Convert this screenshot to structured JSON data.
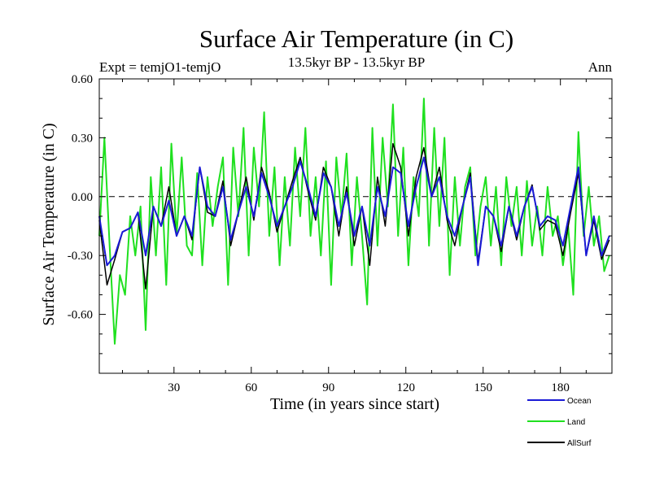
{
  "colors": {
    "ocean": "#1a1ad6",
    "land": "#1fe01f",
    "allsurf": "#000000",
    "zero_line": "#000000",
    "frame": "#000000",
    "background": "#ffffff"
  },
  "chart_data": {
    "type": "line",
    "title": "Surface Air Temperature (in C)",
    "subtitle": "13.5kyr BP - 13.5kyr BP",
    "left_note": "Expt = temjO1-temjO",
    "right_note": "Ann",
    "xlabel": "Time (in years since start)",
    "ylabel": "Surface Air Temperature (in C)",
    "xlim": [
      1,
      200
    ],
    "ylim": [
      -0.9,
      0.6
    ],
    "xticks": [
      30,
      60,
      90,
      120,
      150,
      180
    ],
    "xtick_labels": [
      "30",
      "60",
      "90",
      "120",
      "150",
      "180"
    ],
    "yticks": [
      0.6,
      0.3,
      0.0,
      -0.3,
      -0.6
    ],
    "ytick_labels": [
      "0.60",
      "0.30",
      "0.00",
      "-0.30",
      "-0.60"
    ],
    "reference_line": 0.0,
    "legend_position": "bottom-right",
    "series": [
      {
        "name": "Ocean",
        "color_key": "ocean",
        "x": [
          1,
          4,
          7,
          10,
          13,
          16,
          19,
          22,
          25,
          28,
          31,
          34,
          37,
          40,
          43,
          46,
          49,
          52,
          55,
          58,
          61,
          64,
          67,
          70,
          73,
          76,
          79,
          82,
          85,
          88,
          91,
          94,
          97,
          100,
          103,
          106,
          109,
          112,
          115,
          118,
          121,
          124,
          127,
          130,
          133,
          136,
          139,
          142,
          145,
          148,
          151,
          154,
          157,
          160,
          163,
          166,
          169,
          172,
          175,
          178,
          181,
          184,
          187,
          190,
          193,
          196,
          199
        ],
        "values": [
          -0.1,
          -0.35,
          -0.3,
          -0.18,
          -0.16,
          -0.08,
          -0.3,
          -0.05,
          -0.15,
          -0.02,
          -0.2,
          -0.1,
          -0.2,
          0.15,
          -0.05,
          -0.1,
          0.05,
          -0.22,
          -0.08,
          0.05,
          -0.1,
          0.12,
          0.0,
          -0.15,
          -0.05,
          0.05,
          0.18,
          0.05,
          -0.1,
          0.12,
          0.05,
          -0.15,
          0.02,
          -0.2,
          -0.05,
          -0.25,
          0.05,
          -0.1,
          0.15,
          0.12,
          -0.15,
          0.05,
          0.2,
          0.0,
          0.1,
          -0.1,
          -0.2,
          -0.05,
          0.1,
          -0.35,
          -0.05,
          -0.1,
          -0.25,
          -0.05,
          -0.2,
          -0.05,
          0.05,
          -0.15,
          -0.1,
          -0.12,
          -0.25,
          -0.05,
          0.15,
          -0.3,
          -0.1,
          -0.3,
          -0.2
        ]
      },
      {
        "name": "Land",
        "color_key": "land",
        "x": [
          1,
          3,
          5,
          7,
          9,
          11,
          13,
          15,
          17,
          19,
          21,
          23,
          25,
          27,
          29,
          31,
          33,
          35,
          37,
          39,
          41,
          43,
          45,
          47,
          49,
          51,
          53,
          55,
          57,
          59,
          61,
          63,
          65,
          67,
          69,
          71,
          73,
          75,
          77,
          79,
          81,
          83,
          85,
          87,
          89,
          91,
          93,
          95,
          97,
          99,
          101,
          103,
          105,
          107,
          109,
          111,
          113,
          115,
          117,
          119,
          121,
          123,
          125,
          127,
          129,
          131,
          133,
          135,
          137,
          139,
          141,
          143,
          145,
          147,
          149,
          151,
          153,
          155,
          157,
          159,
          161,
          163,
          165,
          167,
          169,
          171,
          173,
          175,
          177,
          179,
          181,
          183,
          185,
          187,
          189,
          191,
          193,
          195,
          197,
          199
        ],
        "values": [
          -0.2,
          0.3,
          -0.25,
          -0.75,
          -0.4,
          -0.5,
          -0.1,
          -0.3,
          -0.05,
          -0.68,
          0.1,
          -0.3,
          0.15,
          -0.45,
          0.27,
          -0.2,
          0.2,
          -0.25,
          -0.3,
          0.12,
          -0.35,
          0.1,
          -0.15,
          0.05,
          0.2,
          -0.45,
          0.25,
          -0.1,
          0.35,
          -0.3,
          0.25,
          -0.05,
          0.43,
          -0.2,
          0.15,
          -0.35,
          0.1,
          -0.25,
          0.25,
          -0.1,
          0.35,
          -0.2,
          0.1,
          -0.3,
          0.18,
          -0.45,
          0.2,
          -0.1,
          0.22,
          -0.35,
          0.1,
          -0.2,
          -0.55,
          0.35,
          -0.25,
          0.3,
          -0.05,
          0.47,
          -0.2,
          0.25,
          -0.35,
          0.1,
          -0.1,
          0.5,
          -0.25,
          0.35,
          -0.15,
          0.3,
          -0.4,
          0.1,
          -0.25,
          0.05,
          0.15,
          -0.3,
          -0.05,
          0.1,
          -0.25,
          0.05,
          -0.35,
          0.1,
          -0.15,
          0.05,
          -0.3,
          0.08,
          -0.25,
          -0.05,
          -0.3,
          0.05,
          -0.2,
          -0.1,
          -0.35,
          -0.15,
          -0.5,
          0.33,
          -0.2,
          0.05,
          -0.25,
          -0.1,
          -0.38,
          -0.3
        ]
      },
      {
        "name": "AllSurf",
        "color_key": "allsurf",
        "x": [
          1,
          4,
          7,
          10,
          13,
          16,
          19,
          22,
          25,
          28,
          31,
          34,
          37,
          40,
          43,
          46,
          49,
          52,
          55,
          58,
          61,
          64,
          67,
          70,
          73,
          76,
          79,
          82,
          85,
          88,
          91,
          94,
          97,
          100,
          103,
          106,
          109,
          112,
          115,
          118,
          121,
          124,
          127,
          130,
          133,
          136,
          139,
          142,
          145,
          148,
          151,
          154,
          157,
          160,
          163,
          166,
          169,
          172,
          175,
          178,
          181,
          184,
          187,
          190,
          193,
          196,
          199
        ],
        "values": [
          -0.12,
          -0.45,
          -0.32,
          -0.18,
          -0.16,
          -0.08,
          -0.47,
          -0.05,
          -0.15,
          0.05,
          -0.2,
          -0.1,
          -0.22,
          0.15,
          -0.08,
          -0.1,
          0.08,
          -0.25,
          -0.08,
          0.1,
          -0.12,
          0.15,
          0.02,
          -0.18,
          -0.05,
          0.08,
          0.2,
          0.03,
          -0.12,
          0.15,
          0.05,
          -0.2,
          0.05,
          -0.25,
          -0.05,
          -0.35,
          0.1,
          -0.15,
          0.27,
          0.15,
          -0.2,
          0.1,
          0.25,
          0.0,
          0.15,
          -0.12,
          -0.25,
          -0.05,
          0.12,
          -0.33,
          -0.05,
          -0.1,
          -0.28,
          -0.05,
          -0.22,
          -0.05,
          0.06,
          -0.17,
          -0.12,
          -0.14,
          -0.3,
          -0.08,
          0.12,
          -0.3,
          -0.12,
          -0.32,
          -0.22
        ]
      }
    ]
  }
}
